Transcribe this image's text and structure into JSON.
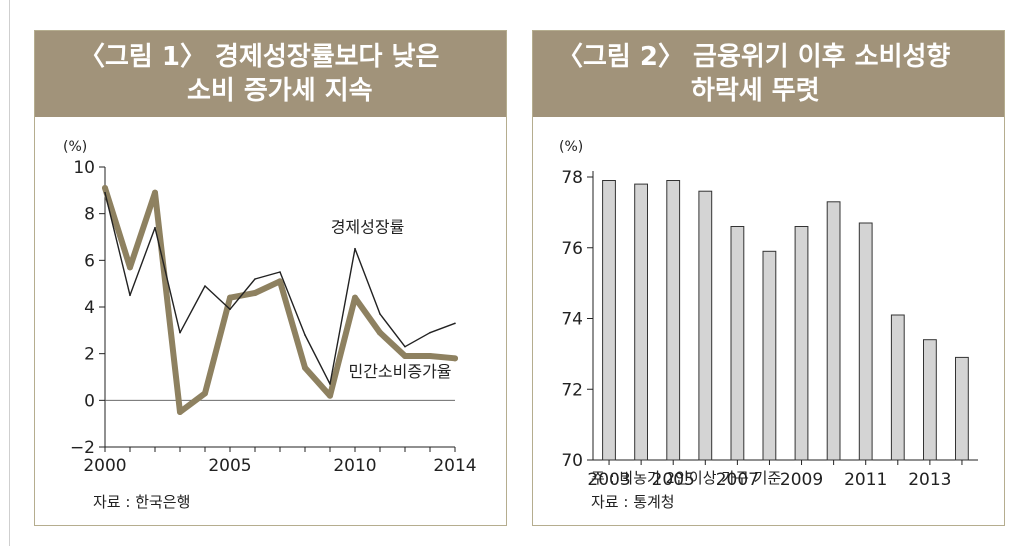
{
  "charts": {
    "left": {
      "title_line1": "〈그림 1〉 경제성장률보다 낮은",
      "title_line2": "소비 증가세 지속",
      "unit": "(%)",
      "source": "자료 : 한국은행"
    },
    "right": {
      "title_line1": "〈그림 2〉 금융위기 이후 소비성향",
      "title_line2": "하락세 뚜렷",
      "unit": "(%)",
      "note": "주 : 비농가 2인이상 가구 기준",
      "source": "자료 : 통계청"
    }
  },
  "chart_data": [
    {
      "type": "line",
      "title": "〈그림 1〉 경제성장률보다 낮은 소비 증가세 지속",
      "ylabel": "(%)",
      "xlim": [
        2000,
        2014
      ],
      "ylim": [
        -2,
        10
      ],
      "x_ticks": [
        2000,
        2005,
        2010,
        2014
      ],
      "y_ticks": [
        -2,
        0,
        2,
        4,
        6,
        8,
        10
      ],
      "x": [
        2000,
        2001,
        2002,
        2003,
        2004,
        2005,
        2006,
        2007,
        2008,
        2009,
        2010,
        2011,
        2012,
        2013,
        2014
      ],
      "series": [
        {
          "name": "경제성장률",
          "color": "#222222",
          "values": [
            8.9,
            4.5,
            7.4,
            2.9,
            4.9,
            3.9,
            5.2,
            5.5,
            2.8,
            0.7,
            6.5,
            3.7,
            2.3,
            2.9,
            3.3
          ]
        },
        {
          "name": "민간소비증가율",
          "color": "#8e8160",
          "values": [
            9.1,
            5.7,
            8.9,
            -0.5,
            0.3,
            4.4,
            4.6,
            5.1,
            1.4,
            0.2,
            4.4,
            2.9,
            1.9,
            1.9,
            1.8
          ]
        }
      ],
      "grid": false
    },
    {
      "type": "bar",
      "title": "〈그림 2〉 금융위기 이후 소비성향 하락세 뚜렷",
      "ylabel": "(%)",
      "categories": [
        "2003",
        "2004",
        "2005",
        "2006",
        "2007",
        "2008",
        "2009",
        "2010",
        "2011",
        "2012",
        "2013",
        "2014"
      ],
      "x_tick_labels": [
        "2003",
        "2005",
        "2007",
        "2009",
        "2011",
        "2013"
      ],
      "values": [
        77.9,
        77.8,
        77.9,
        77.6,
        76.6,
        75.9,
        76.6,
        77.3,
        76.7,
        74.1,
        73.4,
        72.9
      ],
      "ylim": [
        70,
        78
      ],
      "y_ticks": [
        70,
        72,
        74,
        76,
        78
      ],
      "bar_color": "#d4d4d4",
      "grid": false
    }
  ]
}
